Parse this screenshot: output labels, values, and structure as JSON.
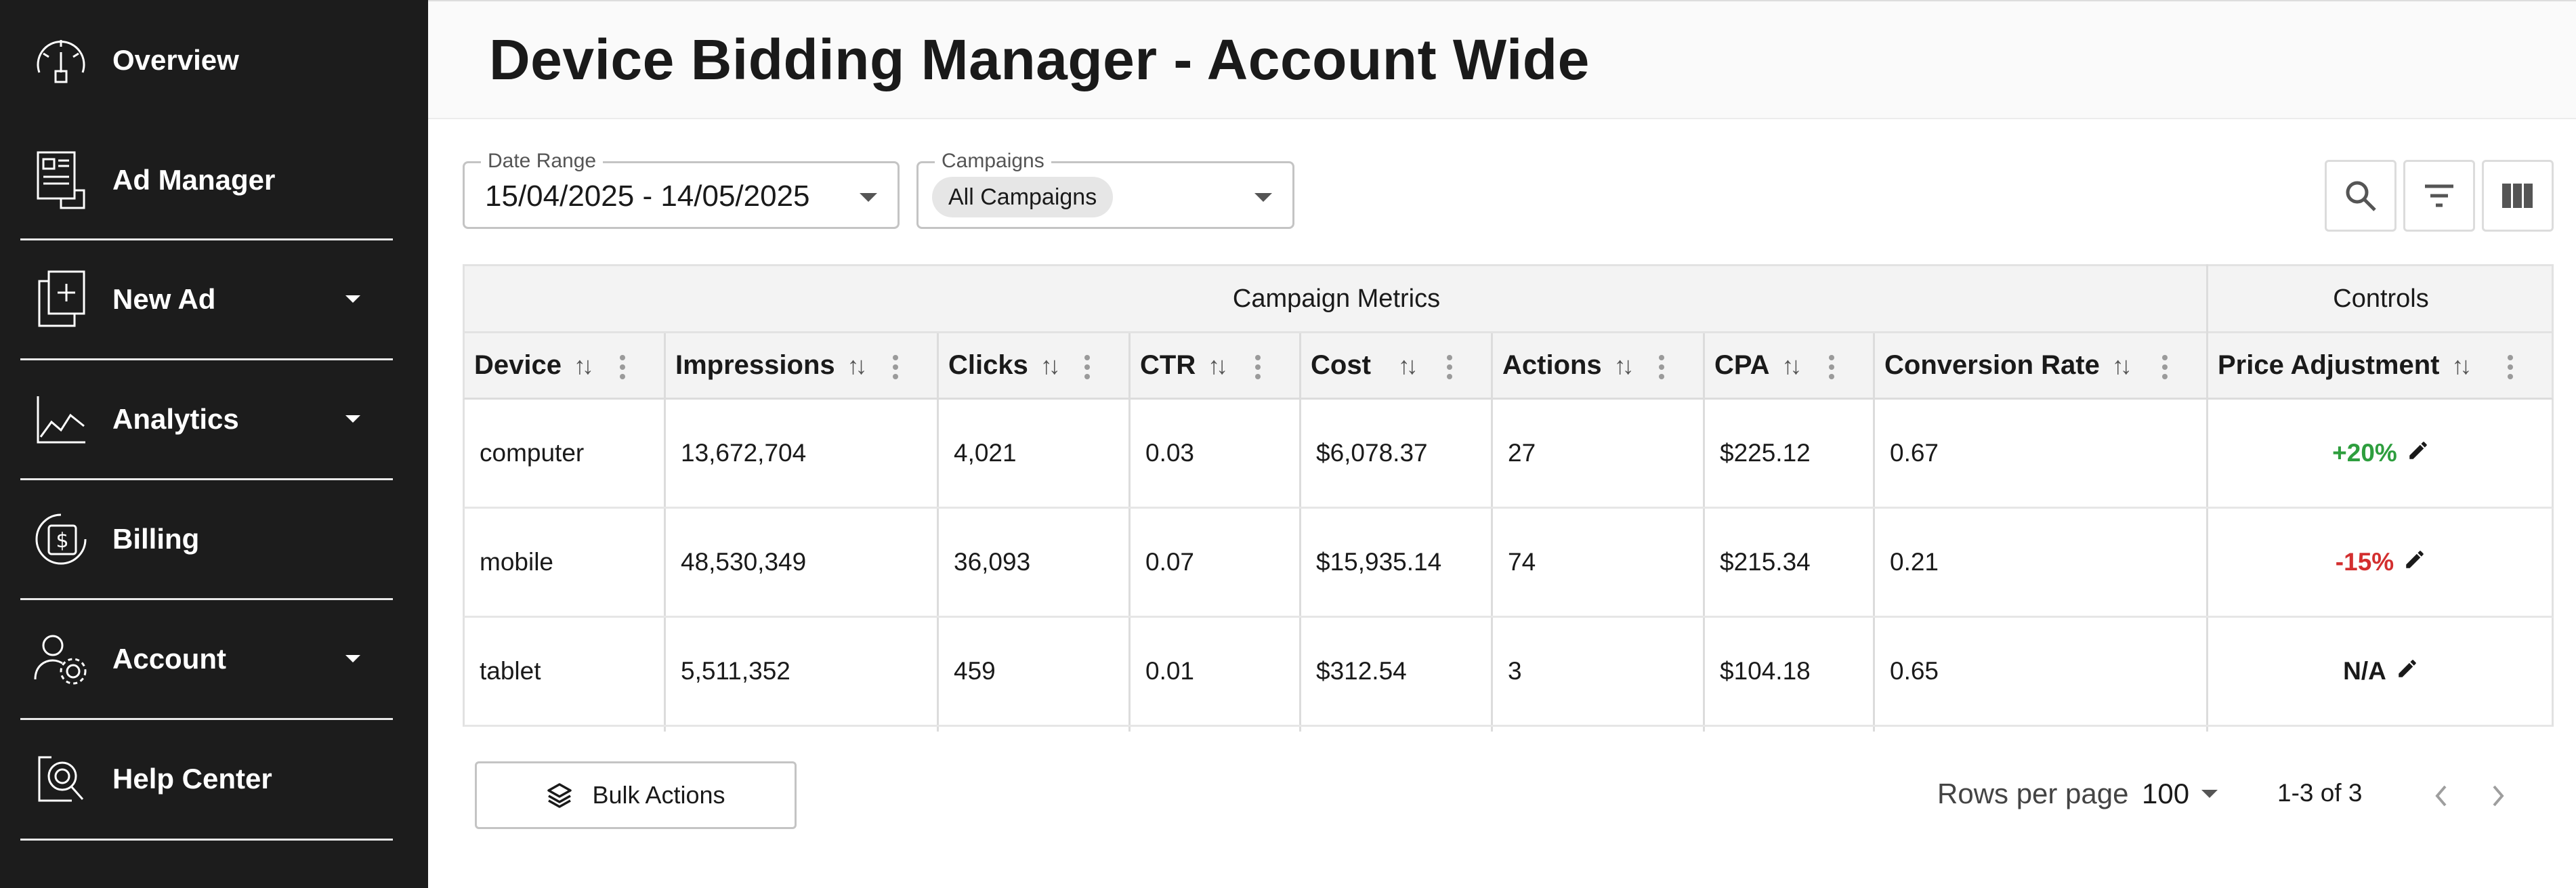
{
  "sidebar": {
    "items": [
      {
        "label": "Overview",
        "icon": "dashboard-gauge-icon",
        "has_dropdown": false
      },
      {
        "label": "Ad Manager",
        "icon": "ad-document-icon",
        "has_dropdown": false
      },
      {
        "label": "New Ad",
        "icon": "add-document-icon",
        "has_dropdown": true
      },
      {
        "label": "Analytics",
        "icon": "line-chart-icon",
        "has_dropdown": true
      },
      {
        "label": "Billing",
        "icon": "dollar-billing-icon",
        "has_dropdown": false
      },
      {
        "label": "Account",
        "icon": "user-gear-icon",
        "has_dropdown": true
      },
      {
        "label": "Help Center",
        "icon": "help-search-icon",
        "has_dropdown": false
      }
    ]
  },
  "header": {
    "title": "Device Bidding Manager - Account Wide"
  },
  "filters": {
    "date_range": {
      "label": "Date Range",
      "value": "15/04/2025 - 14/05/2025"
    },
    "campaigns": {
      "label": "Campaigns",
      "chip": "All Campaigns"
    }
  },
  "toolbar": {
    "icons": [
      "search-icon",
      "filter-icon",
      "columns-icon"
    ]
  },
  "table": {
    "groups": {
      "metrics": "Campaign Metrics",
      "controls": "Controls"
    },
    "columns": [
      "Device",
      "Impressions",
      "Clicks",
      "CTR",
      "Cost",
      "Actions",
      "CPA",
      "Conversion Rate",
      "Price Adjustment"
    ],
    "sort_glyph": "↑↓",
    "rows": [
      {
        "device": "computer",
        "impressions": "13,672,704",
        "clicks": "4,021",
        "ctr": "0.03",
        "cost": "$6,078.37",
        "actions": "27",
        "cpa": "$225.12",
        "conversion_rate": "0.67",
        "price_adjustment": "+20%",
        "price_color": "#2e9e3e"
      },
      {
        "device": "mobile",
        "impressions": "48,530,349",
        "clicks": "36,093",
        "ctr": "0.07",
        "cost": "$15,935.14",
        "actions": "74",
        "cpa": "$215.34",
        "conversion_rate": "0.21",
        "price_adjustment": "-15%",
        "price_color": "#d32f2f"
      },
      {
        "device": "tablet",
        "impressions": "5,511,352",
        "clicks": "459",
        "ctr": "0.01",
        "cost": "$312.54",
        "actions": "3",
        "cpa": "$104.18",
        "conversion_rate": "0.65",
        "price_adjustment": "N/A",
        "price_color": "#1a1a1a"
      }
    ]
  },
  "footer": {
    "bulk_actions": "Bulk Actions",
    "rows_per_page_label": "Rows per page",
    "rows_per_page_value": "100",
    "page_range": "1-3 of 3"
  }
}
